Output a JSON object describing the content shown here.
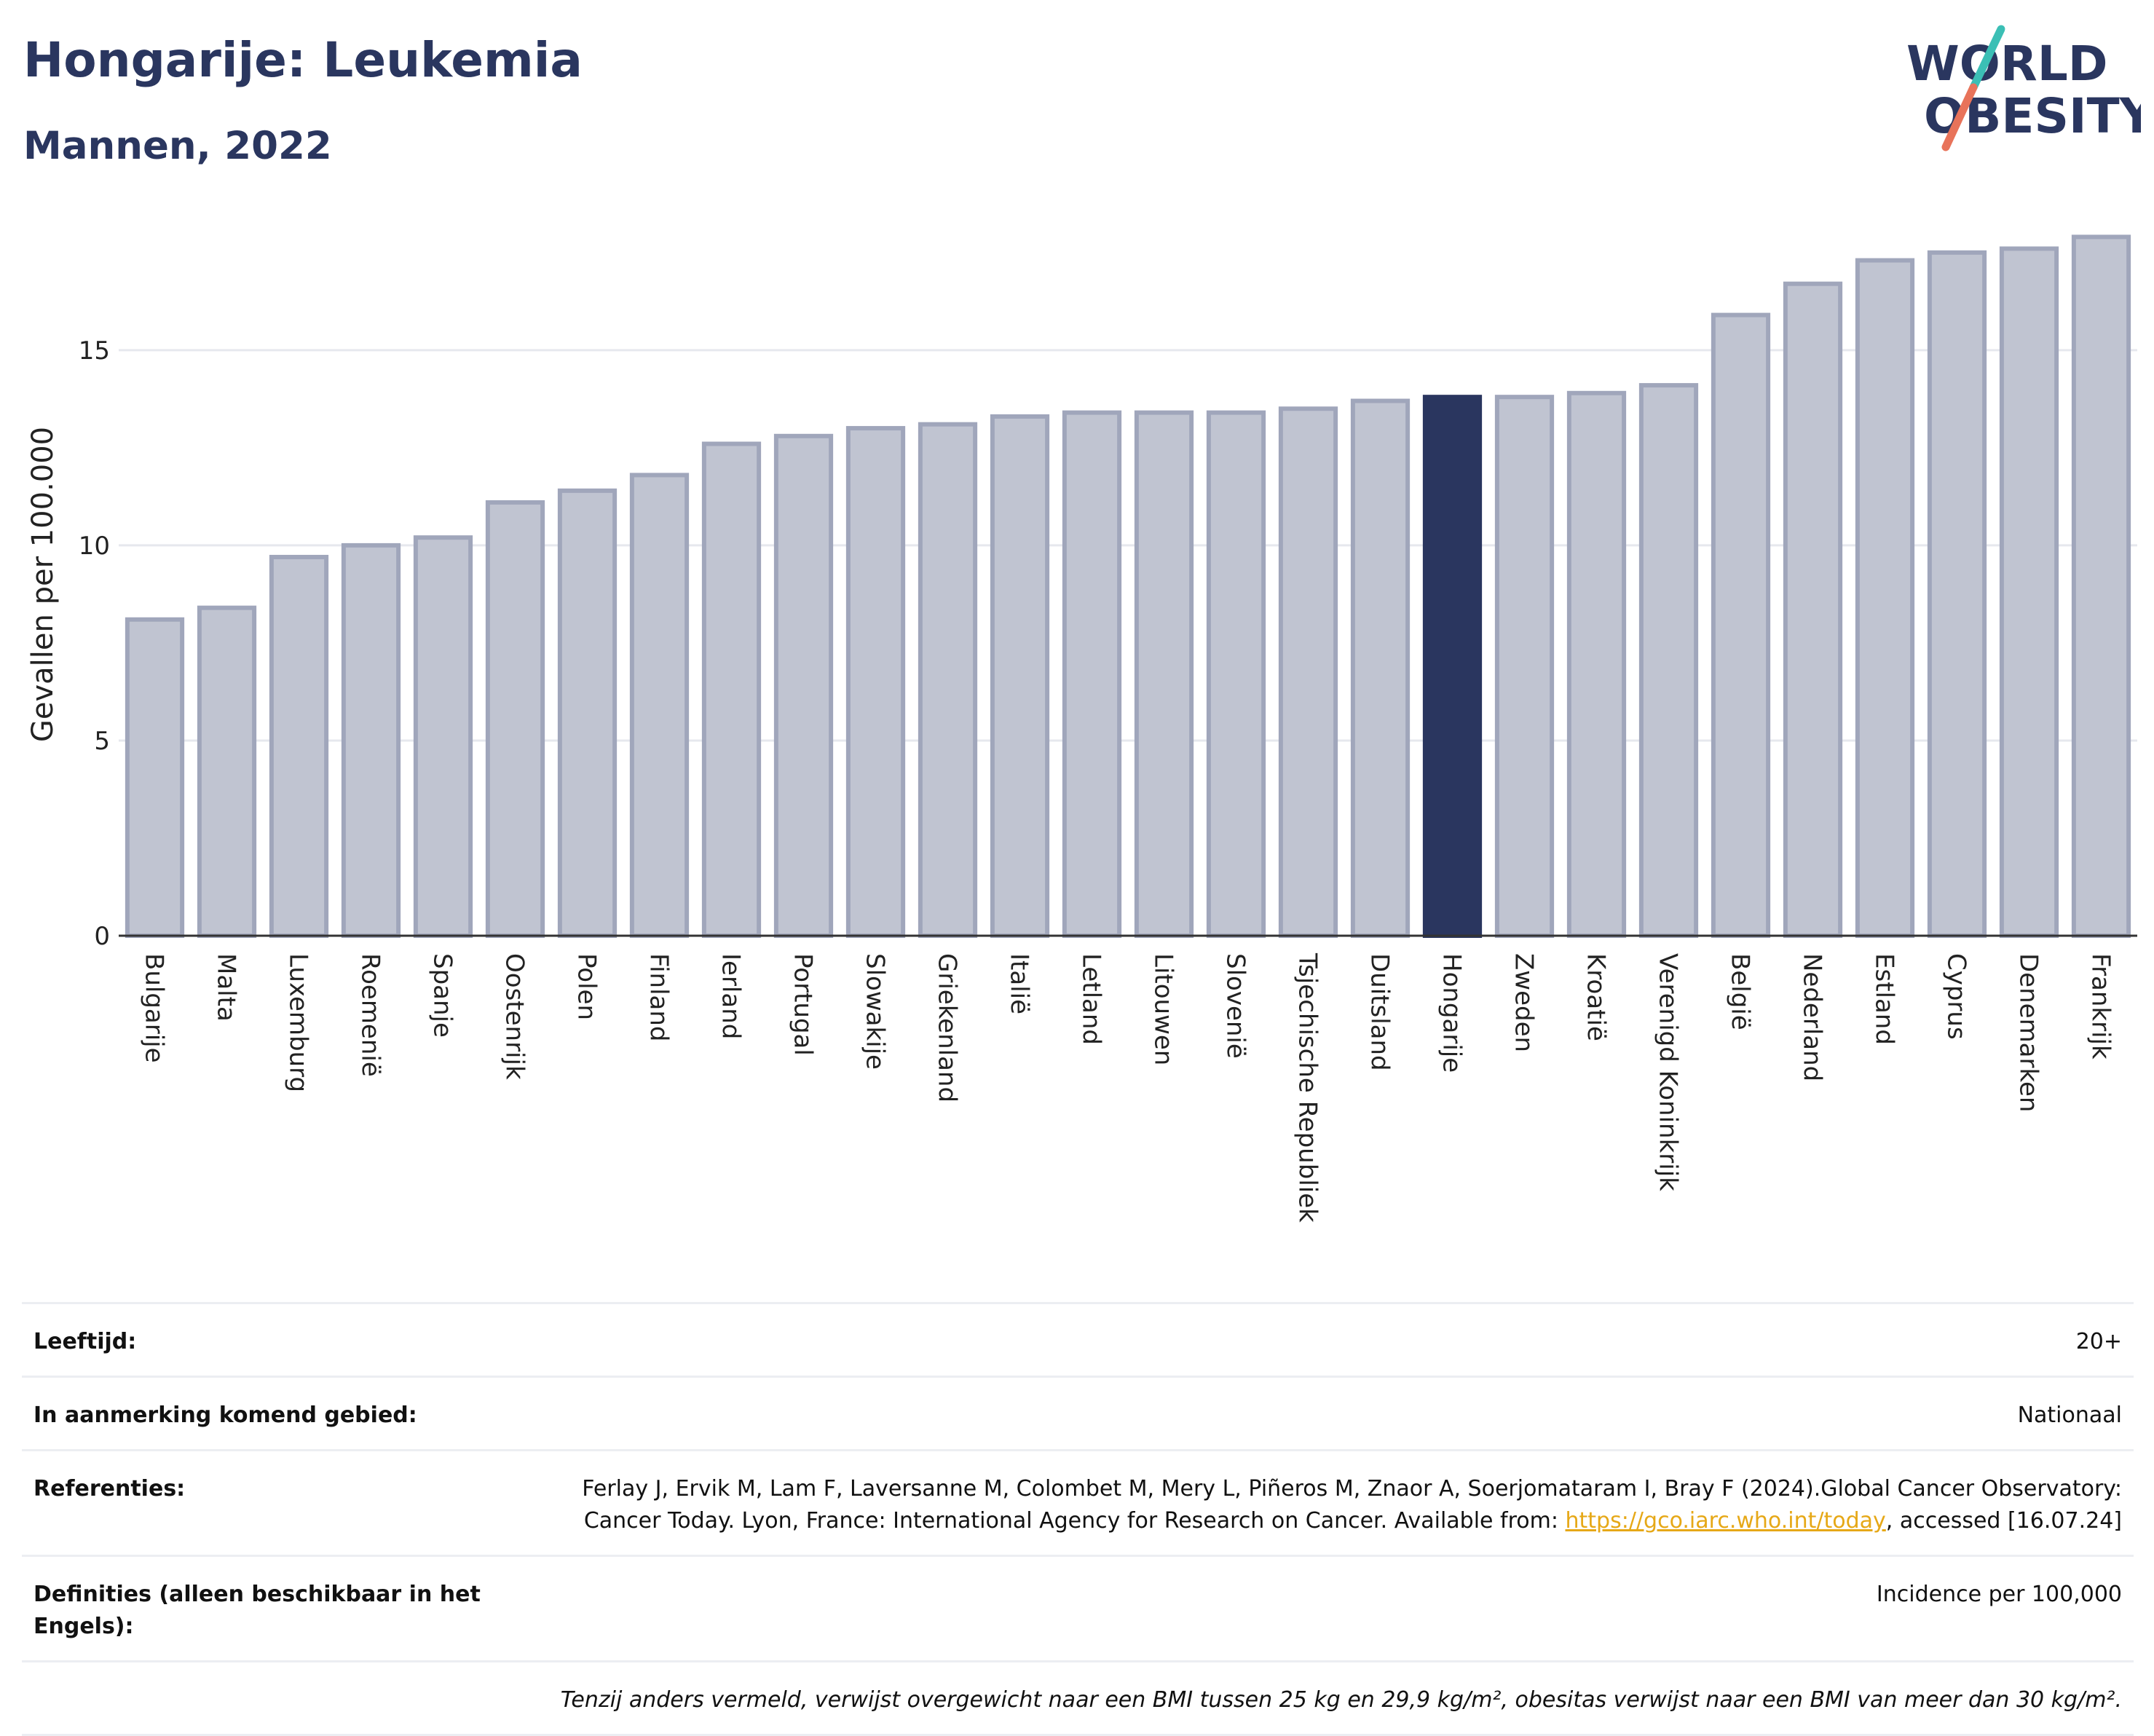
{
  "header": {
    "title": "Hongarije: Leukemia",
    "subtitle": "Mannen, 2022",
    "logo_line1": "WORLD",
    "logo_line2": "OBESITY"
  },
  "colors": {
    "bar": "#c0c4d1",
    "bar_border": "#a0a6bb",
    "highlight": "#2a365f",
    "title": "#2a365f",
    "logo_teal": "#3bbfb5",
    "logo_coral": "#e8735a",
    "link": "#e6a817"
  },
  "chart_data": {
    "type": "bar",
    "ylabel": "Gevallen per 100.000",
    "xlabel": "",
    "ylim": [
      0,
      18
    ],
    "yticks": [
      0,
      5,
      10,
      15
    ],
    "grid": true,
    "highlight": "Hongarije",
    "categories": [
      "Bulgarije",
      "Malta",
      "Luxemburg",
      "Roemenië",
      "Spanje",
      "Oostenrijk",
      "Polen",
      "Finland",
      "Ierland",
      "Portugal",
      "Slowakije",
      "Griekenland",
      "Italië",
      "Letland",
      "Litouwen",
      "Slovenië",
      "Tsjechische Republiek",
      "Duitsland",
      "Hongarije",
      "Zweden",
      "Kroatië",
      "Verenigd Koninkrijk",
      "België",
      "Nederland",
      "Estland",
      "Cyprus",
      "Denemarken",
      "Frankrijk"
    ],
    "values": [
      8.1,
      8.4,
      9.7,
      10.0,
      10.2,
      11.1,
      11.4,
      11.8,
      12.6,
      12.8,
      13.0,
      13.1,
      13.3,
      13.4,
      13.4,
      13.4,
      13.5,
      13.7,
      13.8,
      13.8,
      13.9,
      14.1,
      15.9,
      16.7,
      17.3,
      17.5,
      17.6,
      17.9
    ]
  },
  "info": {
    "age_label": "Leeftijd:",
    "age_value": "20+",
    "area_label": "In aanmerking komend gebied:",
    "area_value": "Nationaal",
    "ref_label": "Referenties:",
    "ref_text_1": "Ferlay J, Ervik M, Lam F, Laversanne M, Colombet M, Mery L, Piñeros M, Znaor A, Soerjomataram I, Bray F (2024).Global Cancer Observatory: Cancer Today. Lyon, France: International Agency for Research on Cancer. Available from: ",
    "ref_link": "https://gco.iarc.who.int/today",
    "ref_text_2": ", accessed [16.07.24]",
    "def_label": "Definities (alleen beschikbaar in het Engels):",
    "def_value": "Incidence per 100,000",
    "note": "Tenzij anders vermeld, verwijst overgewicht naar een BMI tussen 25 kg en 29,9 kg/m², obesitas verwijst naar een BMI van meer dan 30 kg/m²."
  }
}
